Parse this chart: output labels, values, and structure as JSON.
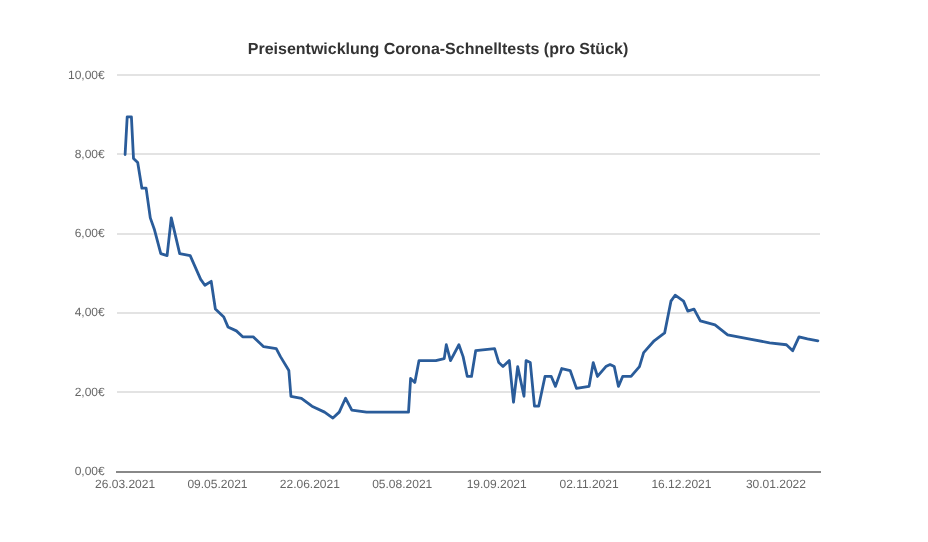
{
  "chart_data": {
    "type": "line",
    "title": "Preisentwicklung Corona-Schnelltests (pro Stück)",
    "x": [
      "2021-03-26",
      "2021-03-27",
      "2021-03-29",
      "2021-03-30",
      "2021-04-01",
      "2021-04-03",
      "2021-04-05",
      "2021-04-07",
      "2021-04-09",
      "2021-04-12",
      "2021-04-15",
      "2021-04-17",
      "2021-04-21",
      "2021-04-26",
      "2021-05-01",
      "2021-05-03",
      "2021-05-06",
      "2021-05-08",
      "2021-05-12",
      "2021-05-14",
      "2021-05-18",
      "2021-05-21",
      "2021-05-26",
      "2021-05-31",
      "2021-06-06",
      "2021-06-08",
      "2021-06-12",
      "2021-06-13",
      "2021-06-18",
      "2021-06-23",
      "2021-06-29",
      "2021-07-03",
      "2021-07-06",
      "2021-07-09",
      "2021-07-12",
      "2021-07-19",
      "2021-07-26",
      "2021-08-03",
      "2021-08-08",
      "2021-08-09",
      "2021-08-11",
      "2021-08-13",
      "2021-08-21",
      "2021-08-25",
      "2021-08-26",
      "2021-08-28",
      "2021-09-01",
      "2021-09-03",
      "2021-09-05",
      "2021-09-07",
      "2021-09-09",
      "2021-09-18",
      "2021-09-20",
      "2021-09-22",
      "2021-09-25",
      "2021-09-27",
      "2021-09-29",
      "2021-10-02",
      "2021-10-03",
      "2021-10-05",
      "2021-10-07",
      "2021-10-09",
      "2021-10-12",
      "2021-10-15",
      "2021-10-17",
      "2021-10-20",
      "2021-10-24",
      "2021-10-27",
      "2021-11-02",
      "2021-11-04",
      "2021-11-06",
      "2021-11-10",
      "2021-11-12",
      "2021-11-14",
      "2021-11-16",
      "2021-11-18",
      "2021-11-22",
      "2021-11-26",
      "2021-11-28",
      "2021-12-03",
      "2021-12-08",
      "2021-12-11",
      "2021-12-13",
      "2021-12-17",
      "2021-12-19",
      "2021-12-22",
      "2021-12-25",
      "2022-01-01",
      "2022-01-07",
      "2022-01-17",
      "2022-01-27",
      "2022-02-04",
      "2022-02-07",
      "2022-02-10",
      "2022-02-14",
      "2022-02-19"
    ],
    "values": [
      8.0,
      8.95,
      8.95,
      7.9,
      7.8,
      7.15,
      7.15,
      6.4,
      6.1,
      5.5,
      5.45,
      6.4,
      5.5,
      5.45,
      4.85,
      4.7,
      4.8,
      4.1,
      3.9,
      3.65,
      3.55,
      3.4,
      3.4,
      3.15,
      3.1,
      2.9,
      2.55,
      1.9,
      1.85,
      1.65,
      1.5,
      1.35,
      1.5,
      1.85,
      1.55,
      1.5,
      1.5,
      1.5,
      1.5,
      2.35,
      2.25,
      2.8,
      2.8,
      2.85,
      3.2,
      2.8,
      3.2,
      2.9,
      2.4,
      2.4,
      3.05,
      3.1,
      2.75,
      2.65,
      2.8,
      1.75,
      2.65,
      1.9,
      2.8,
      2.75,
      1.65,
      1.65,
      2.4,
      2.4,
      2.15,
      2.6,
      2.55,
      2.1,
      2.15,
      2.75,
      2.4,
      2.65,
      2.7,
      2.65,
      2.15,
      2.4,
      2.4,
      2.65,
      3.0,
      3.3,
      3.5,
      4.3,
      4.45,
      4.3,
      4.05,
      4.1,
      3.8,
      3.7,
      3.45,
      3.35,
      3.25,
      3.2,
      3.05,
      3.4,
      3.35,
      3.3
    ],
    "color": "#2a5c9a",
    "xlim": [
      "2021-03-22",
      "2022-02-20"
    ],
    "xticks": [
      {
        "value": "2021-03-26",
        "label": "26.03.2021"
      },
      {
        "value": "2021-05-09",
        "label": "09.05.2021"
      },
      {
        "value": "2021-06-22",
        "label": "22.06.2021"
      },
      {
        "value": "2021-08-05",
        "label": "05.08.2021"
      },
      {
        "value": "2021-09-19",
        "label": "19.09.2021"
      },
      {
        "value": "2021-11-02",
        "label": "02.11.2021"
      },
      {
        "value": "2021-12-16",
        "label": "16.12.2021"
      },
      {
        "value": "2022-01-30",
        "label": "30.01.2022"
      }
    ],
    "ylim": [
      0,
      10
    ],
    "yticks": [
      {
        "value": 0,
        "label": "0,00€"
      },
      {
        "value": 2,
        "label": "2,00€"
      },
      {
        "value": 4,
        "label": "4,00€"
      },
      {
        "value": 6,
        "label": "6,00€"
      },
      {
        "value": 8,
        "label": "8,00€"
      },
      {
        "value": 10,
        "label": "10,00€"
      }
    ],
    "grid": "y",
    "marker": "none",
    "line_style": "solid"
  }
}
